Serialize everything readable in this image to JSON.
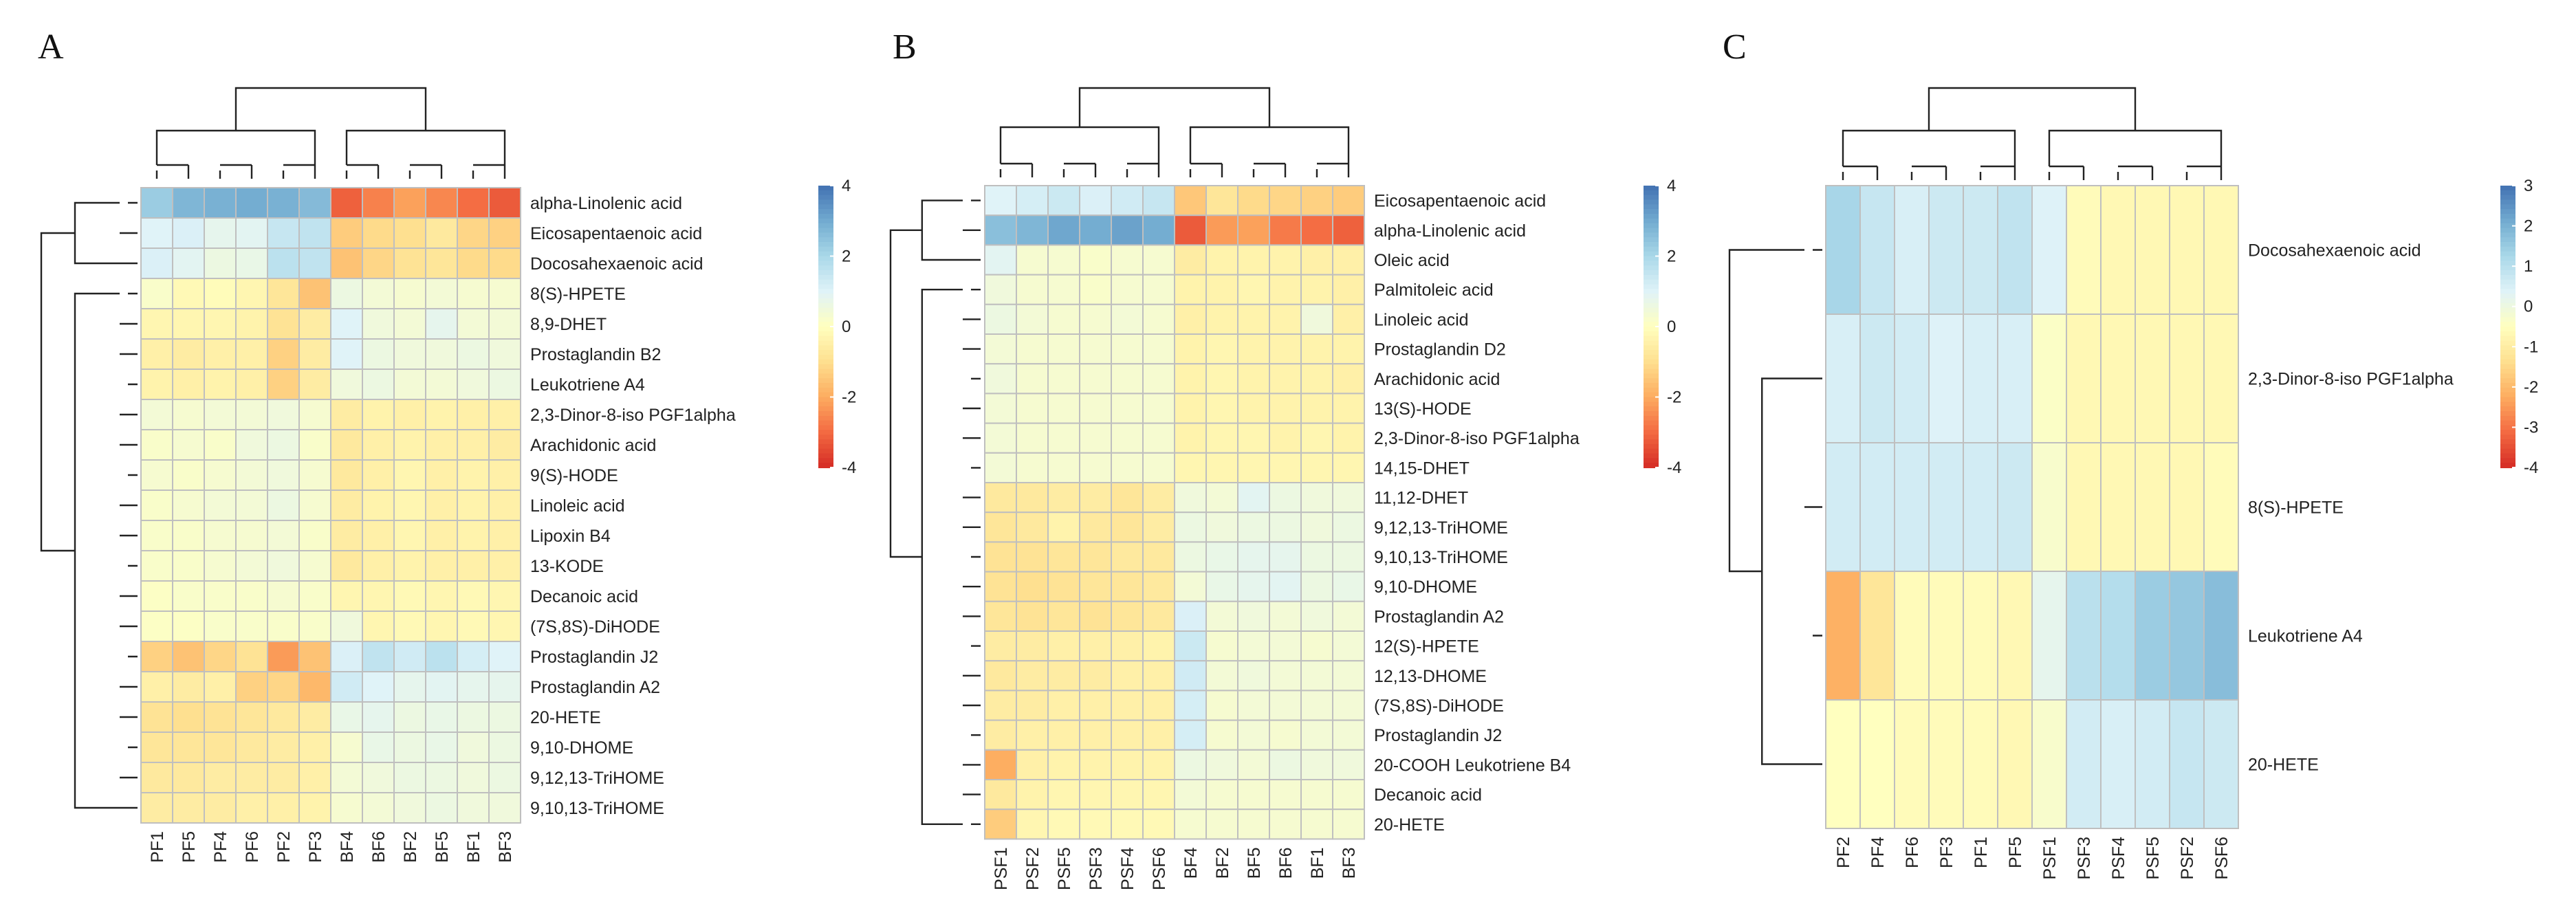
{
  "figure": {
    "panels": [
      "A",
      "B",
      "C"
    ]
  },
  "palette": [
    "#d73027",
    "#f46d43",
    "#fdae61",
    "#fee090",
    "#ffffbf",
    "#e0f3f8",
    "#abd9e9",
    "#74add1",
    "#4575b4"
  ],
  "chart_data": [
    {
      "type": "heatmap",
      "panel_label": "A",
      "columns": [
        "PF1",
        "PF5",
        "PF4",
        "PF6",
        "PF2",
        "PF3",
        "BF4",
        "BF6",
        "BF2",
        "BF5",
        "BF1",
        "BF3"
      ],
      "rows": [
        "alpha-Linolenic acid",
        "Eicosapentaenoic acid",
        "Docosahexaenoic acid",
        "8(S)-HPETE",
        "8,9-DHET",
        "Prostaglandin B2",
        "Leukotriene A4",
        "2,3-Dinor-8-iso PGF1alpha",
        "Arachidonic acid",
        "9(S)-HODE",
        "Linoleic acid",
        "Lipoxin B4",
        "13-KODE",
        "Decanoic acid",
        "(7S,8S)-DiHODE",
        "Prostaglandin J2",
        "Prostaglandin A2",
        "20-HETE",
        "9,10-DHOME",
        "9,12,13-TriHOME",
        "9,10,13-TriHOME"
      ],
      "values": [
        [
          2.3,
          2.8,
          2.9,
          3.0,
          2.9,
          2.7,
          -3.2,
          -2.7,
          -2.2,
          -2.6,
          -3.0,
          -3.3
        ],
        [
          1.0,
          1.1,
          0.8,
          0.9,
          1.5,
          1.6,
          -1.4,
          -1.1,
          -1.0,
          -0.7,
          -1.2,
          -1.3
        ],
        [
          1.1,
          0.9,
          0.6,
          0.7,
          1.7,
          1.6,
          -1.6,
          -1.2,
          -0.9,
          -0.8,
          -1.1,
          -1.1
        ],
        [
          0.2,
          -0.2,
          -0.1,
          -0.3,
          -0.8,
          -1.6,
          0.6,
          0.4,
          0.3,
          0.4,
          0.3,
          0.3
        ],
        [
          -0.3,
          -0.3,
          -0.3,
          -0.4,
          -0.9,
          -0.6,
          1.0,
          0.5,
          0.4,
          0.8,
          0.4,
          0.4
        ],
        [
          -0.5,
          -0.6,
          -0.5,
          -0.5,
          -1.3,
          -0.6,
          1.0,
          0.6,
          0.5,
          0.5,
          0.6,
          0.5
        ],
        [
          -0.4,
          -0.5,
          -0.4,
          -0.5,
          -1.3,
          -0.6,
          0.5,
          0.6,
          0.4,
          0.4,
          0.5,
          0.6
        ],
        [
          0.4,
          0.3,
          0.4,
          0.4,
          0.5,
          0.3,
          -0.6,
          -0.4,
          -0.5,
          -0.4,
          -0.5,
          -0.5
        ],
        [
          0.2,
          0.3,
          0.2,
          0.5,
          0.6,
          0.2,
          -0.7,
          -0.5,
          -0.4,
          -0.5,
          -0.5,
          -0.6
        ],
        [
          0.3,
          0.2,
          0.3,
          0.4,
          0.5,
          0.3,
          -0.7,
          -0.5,
          -0.3,
          -0.5,
          -0.4,
          -0.5
        ],
        [
          0.2,
          0.3,
          0.4,
          0.4,
          0.6,
          0.3,
          -0.6,
          -0.4,
          -0.3,
          -0.5,
          -0.4,
          -0.5
        ],
        [
          0.2,
          0.2,
          0.3,
          0.3,
          0.4,
          0.2,
          -0.6,
          -0.5,
          -0.3,
          -0.5,
          -0.4,
          -0.5
        ],
        [
          0.2,
          0.2,
          0.3,
          0.4,
          0.5,
          0.3,
          -0.7,
          -0.5,
          -0.4,
          -0.5,
          -0.5,
          -0.5
        ],
        [
          0.1,
          0.2,
          0.2,
          0.2,
          0.3,
          0.2,
          -0.3,
          -0.3,
          -0.2,
          -0.3,
          -0.2,
          -0.3
        ],
        [
          0.1,
          0.1,
          0.2,
          0.2,
          0.2,
          0.2,
          0.5,
          -0.3,
          -0.2,
          -0.3,
          -0.2,
          -0.3
        ],
        [
          -1.3,
          -1.6,
          -1.2,
          -0.9,
          -2.3,
          -1.6,
          1.1,
          1.6,
          1.3,
          1.7,
          1.2,
          1.0
        ],
        [
          -0.5,
          -0.6,
          -0.5,
          -1.3,
          -1.2,
          -1.8,
          1.3,
          1.0,
          0.8,
          0.9,
          0.8,
          0.8
        ],
        [
          -0.9,
          -1.0,
          -0.9,
          -0.8,
          -0.7,
          -0.6,
          0.7,
          0.8,
          0.6,
          0.7,
          0.6,
          0.6
        ],
        [
          -0.8,
          -0.8,
          -0.8,
          -0.7,
          -0.6,
          -0.5,
          0.3,
          0.7,
          0.6,
          0.7,
          0.5,
          0.6
        ],
        [
          -0.7,
          -0.7,
          -0.6,
          -0.6,
          -0.6,
          -0.5,
          0.4,
          0.5,
          0.6,
          0.6,
          0.5,
          0.6
        ],
        [
          -0.6,
          -0.6,
          -0.6,
          -0.5,
          -0.5,
          -0.4,
          0.3,
          0.4,
          0.5,
          0.6,
          0.5,
          0.5
        ]
      ],
      "legend": {
        "min": -4,
        "max": 4,
        "ticks": [
          4,
          2,
          0,
          -2,
          -4
        ]
      }
    },
    {
      "type": "heatmap",
      "panel_label": "B",
      "columns": [
        "PSF1",
        "PSF2",
        "PSF5",
        "PSF3",
        "PSF4",
        "PSF6",
        "BF4",
        "BF2",
        "BF5",
        "BF6",
        "BF1",
        "BF3"
      ],
      "rows": [
        "Eicosapentaenoic acid",
        "alpha-Linolenic acid",
        "Oleic acid",
        "Palmitoleic acid",
        "Linoleic acid",
        "Prostaglandin D2",
        "Arachidonic acid",
        "13(S)-HODE",
        "2,3-Dinor-8-iso PGF1alpha",
        "14,15-DHET",
        "11,12-DHET",
        "9,12,13-TriHOME",
        "9,10,13-TriHOME",
        "9,10-DHOME",
        "Prostaglandin A2",
        "12(S)-HPETE",
        "12,13-DHOME",
        "(7S,8S)-DiHODE",
        "Prostaglandin J2",
        "20-COOH Leukotriene B4",
        "Decanoic acid",
        "20-HETE"
      ],
      "values": [
        [
          1.0,
          1.2,
          1.4,
          1.1,
          1.3,
          1.5,
          -1.5,
          -0.8,
          -1.1,
          -1.2,
          -1.3,
          -1.4
        ],
        [
          2.6,
          2.8,
          3.1,
          3.0,
          3.2,
          3.0,
          -3.3,
          -2.3,
          -2.2,
          -2.8,
          -3.0,
          -3.2
        ],
        [
          0.9,
          0.3,
          0.3,
          0.2,
          0.3,
          0.3,
          -0.6,
          -0.4,
          -0.4,
          -0.4,
          -0.5,
          -0.5
        ],
        [
          0.5,
          0.3,
          0.3,
          0.2,
          0.3,
          0.3,
          -0.4,
          -0.4,
          -0.3,
          -0.4,
          -0.4,
          -0.5
        ],
        [
          0.6,
          0.4,
          0.3,
          0.3,
          0.4,
          0.3,
          -0.5,
          -0.4,
          -0.4,
          -0.4,
          0.5,
          -0.5
        ],
        [
          0.4,
          0.3,
          0.3,
          0.3,
          0.3,
          0.3,
          -0.4,
          -0.3,
          -0.4,
          -0.4,
          -0.4,
          -0.4
        ],
        [
          0.5,
          0.3,
          0.3,
          0.3,
          0.3,
          0.3,
          -0.4,
          -0.3,
          -0.4,
          -0.4,
          -0.4,
          -0.5
        ],
        [
          0.4,
          0.3,
          0.3,
          0.3,
          0.3,
          0.3,
          -0.4,
          -0.3,
          -0.4,
          -0.4,
          -0.4,
          -0.4
        ],
        [
          0.4,
          0.3,
          0.3,
          0.3,
          0.3,
          0.3,
          -0.4,
          -0.3,
          -0.3,
          -0.4,
          -0.3,
          -0.4
        ],
        [
          0.4,
          0.3,
          0.3,
          0.3,
          0.3,
          0.3,
          -0.3,
          -0.3,
          -0.3,
          -0.3,
          -0.3,
          -0.3
        ],
        [
          -0.7,
          -0.7,
          -0.6,
          -0.6,
          -0.8,
          -0.6,
          0.5,
          0.4,
          0.9,
          0.6,
          0.5,
          0.5
        ],
        [
          -0.8,
          -0.7,
          -0.4,
          -0.7,
          -0.8,
          -0.6,
          0.6,
          0.5,
          0.6,
          0.6,
          0.5,
          0.6
        ],
        [
          -0.9,
          -0.9,
          -0.8,
          -0.8,
          -0.7,
          -0.7,
          0.6,
          0.7,
          0.8,
          0.8,
          0.6,
          0.6
        ],
        [
          -0.9,
          -1.0,
          -0.9,
          -0.8,
          -0.8,
          -0.7,
          0.4,
          0.7,
          0.8,
          0.9,
          0.6,
          0.7
        ],
        [
          -0.8,
          -0.9,
          -0.8,
          -0.9,
          -0.8,
          -0.7,
          1.1,
          0.4,
          0.5,
          0.4,
          0.5,
          0.4
        ],
        [
          -0.6,
          -0.6,
          -0.5,
          -0.5,
          -0.5,
          -0.4,
          1.4,
          0.3,
          0.4,
          0.4,
          0.3,
          0.4
        ],
        [
          -0.7,
          -0.6,
          -0.6,
          -0.6,
          -0.5,
          -0.5,
          1.3,
          0.4,
          0.5,
          0.4,
          0.4,
          0.4
        ],
        [
          -0.6,
          -0.6,
          -0.5,
          -0.5,
          -0.5,
          -0.5,
          1.2,
          0.3,
          0.4,
          0.4,
          0.4,
          0.4
        ],
        [
          -0.6,
          -0.5,
          -0.5,
          -0.5,
          -0.5,
          -0.5,
          1.2,
          0.3,
          0.4,
          0.3,
          0.4,
          0.4
        ],
        [
          -2.0,
          -0.5,
          -0.4,
          -0.4,
          -0.4,
          -0.4,
          0.6,
          0.5,
          0.4,
          0.6,
          0.5,
          0.5
        ],
        [
          -0.7,
          -0.4,
          -0.3,
          -0.3,
          -0.3,
          -0.3,
          0.4,
          0.3,
          0.3,
          0.3,
          0.3,
          0.3
        ],
        [
          -1.4,
          -0.3,
          -0.2,
          -0.2,
          -0.2,
          -0.2,
          0.3,
          0.3,
          0.3,
          0.3,
          0.3,
          0.3
        ]
      ],
      "legend": {
        "min": -4,
        "max": 4,
        "ticks": [
          4,
          2,
          0,
          -2,
          -4
        ]
      }
    },
    {
      "type": "heatmap",
      "panel_label": "C",
      "columns": [
        "PF2",
        "PF4",
        "PF6",
        "PF3",
        "PF1",
        "PF5",
        "PSF1",
        "PSF3",
        "PSF4",
        "PSF5",
        "PSF2",
        "PSF6"
      ],
      "rows": [
        "Docosahexaenoic acid",
        "2,3-Dinor-8-iso PGF1alpha",
        "8(S)-HPETE",
        "Leukotriene A4",
        "20-HETE"
      ],
      "values": [
        [
          1.3,
          0.8,
          0.5,
          0.7,
          0.7,
          0.9,
          0.4,
          -0.6,
          -0.7,
          -0.7,
          -0.7,
          -0.7
        ],
        [
          0.5,
          0.7,
          0.6,
          0.4,
          0.5,
          0.5,
          -0.4,
          -0.7,
          -0.7,
          -0.7,
          -0.7,
          -0.7
        ],
        [
          0.6,
          0.6,
          0.6,
          0.6,
          0.6,
          0.7,
          -0.3,
          -0.7,
          -0.7,
          -0.7,
          -0.7,
          -0.6
        ],
        [
          -2.2,
          -1.2,
          -0.6,
          -0.6,
          -0.6,
          -0.7,
          0.2,
          1.0,
          1.1,
          1.5,
          1.6,
          1.8
        ],
        [
          -0.5,
          -0.5,
          -0.6,
          -0.6,
          -0.6,
          -0.7,
          -0.3,
          0.6,
          0.5,
          0.6,
          0.8,
          0.7
        ]
      ],
      "legend": {
        "min": -4,
        "max": 3,
        "ticks": [
          3,
          2,
          1,
          0,
          -1,
          -2,
          -3,
          -4
        ]
      }
    }
  ]
}
